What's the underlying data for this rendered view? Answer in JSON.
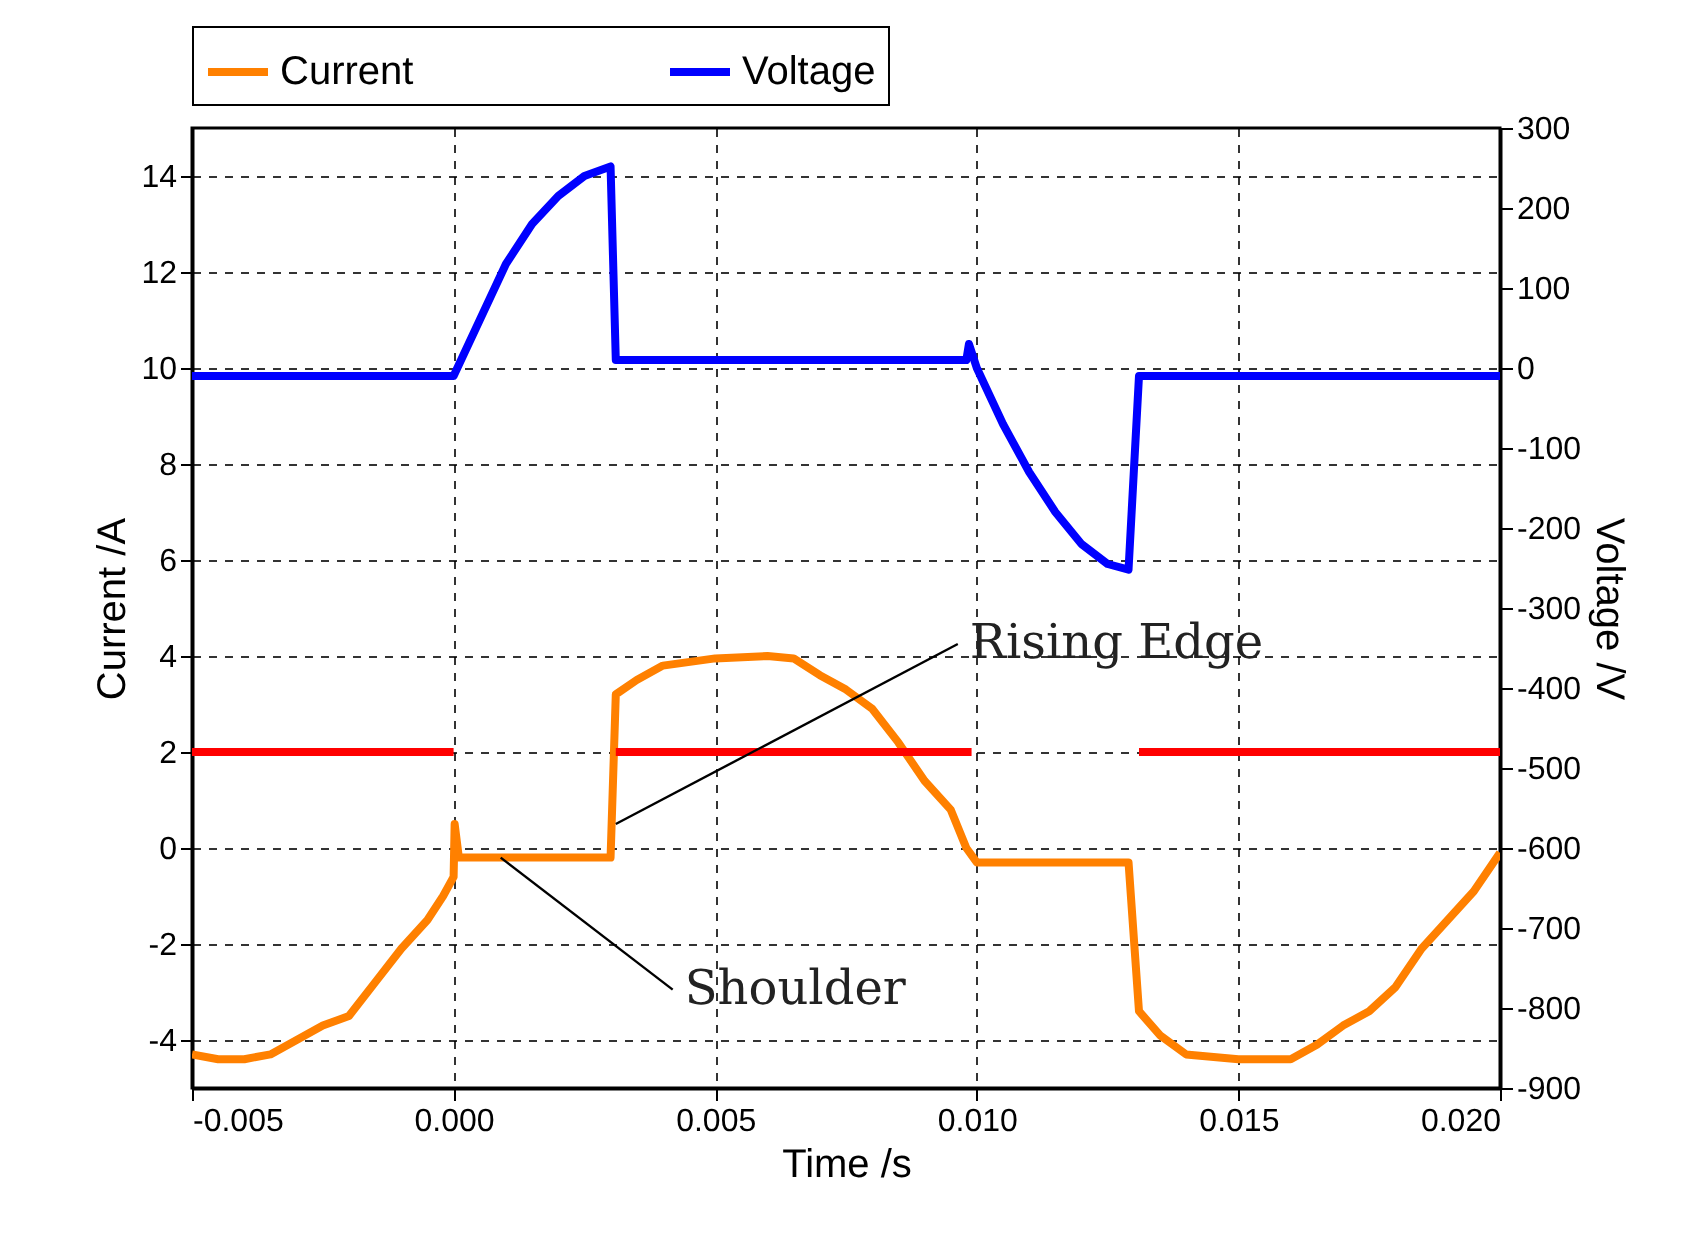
{
  "chart_data": {
    "type": "line",
    "xlabel": "Time /s",
    "ylabel": "Current /A",
    "y2label": "Voltage /V",
    "xlim": [
      -0.005,
      0.02
    ],
    "xticks": [
      -0.005,
      {
        "value": 0,
        "label": "0.000"
      },
      {
        "value": 0.005,
        "label": "0.005"
      },
      {
        "value": 0.01,
        "label": "0.010"
      },
      {
        "value": 0.015,
        "label": "0.015"
      },
      {
        "value": 0.02,
        "label": "0.020"
      }
    ],
    "ylim": [
      -5,
      15
    ],
    "yticks": [
      -4,
      -2,
      0,
      2,
      4,
      6,
      8,
      10,
      12,
      14
    ],
    "y2lim": [
      -900,
      300
    ],
    "y2ticks": [
      -900,
      -800,
      -700,
      -600,
      -500,
      -400,
      -300,
      -200,
      -100,
      0,
      100,
      200,
      300
    ],
    "grid": true,
    "legend": "top",
    "line_style": "solid",
    "series": [
      {
        "name": "Current",
        "color": "#ff8000",
        "x": [
          -0.005,
          -0.0045,
          -0.004,
          -0.0035,
          -0.003,
          -0.0025,
          -0.002,
          -0.0015,
          -0.001,
          -0.0005,
          -0.0002,
          0,
          2e-05,
          0.0001,
          0.001,
          0.002,
          0.003,
          0.0031,
          0.0035,
          0.004,
          0.005,
          0.006,
          0.0065,
          0.007,
          0.0075,
          0.008,
          0.0085,
          0.009,
          0.0095,
          0.0098,
          0.01,
          0.011,
          0.012,
          0.0129,
          0.0131,
          0.0135,
          0.014,
          0.015,
          0.016,
          0.0165,
          0.017,
          0.0175,
          0.018,
          0.0185,
          0.019,
          0.0195,
          0.02
        ],
        "values": [
          -4.3,
          -4.4,
          -4.4,
          -4.3,
          -4.0,
          -3.7,
          -3.5,
          -2.8,
          -2.1,
          -1.5,
          -1.0,
          -0.6,
          0.5,
          -0.2,
          -0.2,
          -0.2,
          -0.2,
          3.2,
          3.5,
          3.8,
          3.95,
          4.0,
          3.95,
          3.6,
          3.3,
          2.9,
          2.2,
          1.4,
          0.8,
          0.0,
          -0.3,
          -0.3,
          -0.3,
          -0.3,
          -3.4,
          -3.9,
          -4.3,
          -4.4,
          -4.4,
          -4.1,
          -3.7,
          -3.4,
          -2.9,
          -2.1,
          -1.5,
          -0.9,
          -0.1
        ]
      },
      {
        "name": "Voltage",
        "color": "#0000ff",
        "axis": "y2",
        "x": [
          -0.005,
          0,
          0.0005,
          0.001,
          0.0015,
          0.002,
          0.0025,
          0.003,
          0.0031,
          0.005,
          0.0098,
          0.00985,
          0.01,
          0.0105,
          0.011,
          0.0115,
          0.012,
          0.0125,
          0.0129,
          0.0131,
          0.02
        ],
        "values": [
          -10,
          -10,
          60,
          130,
          180,
          215,
          240,
          252,
          10,
          10,
          10,
          30,
          0,
          -70,
          -130,
          -180,
          -220,
          -245,
          -252,
          -10,
          -10
        ]
      },
      {
        "color": "#ff0000",
        "x": [
          -0.005,
          0,
          0.0015,
          0.0031,
          0.0099,
          0.0115,
          0.0131,
          0.02
        ],
        "values": [
          2,
          2,
          null,
          2,
          2,
          null,
          2,
          2
        ]
      }
    ],
    "annotations": [
      {
        "text": "Rising Edge",
        "x": 0.0031,
        "y": 0.5
      },
      {
        "text": "Shoulder",
        "x": 0.0009,
        "y": -0.2
      }
    ]
  }
}
